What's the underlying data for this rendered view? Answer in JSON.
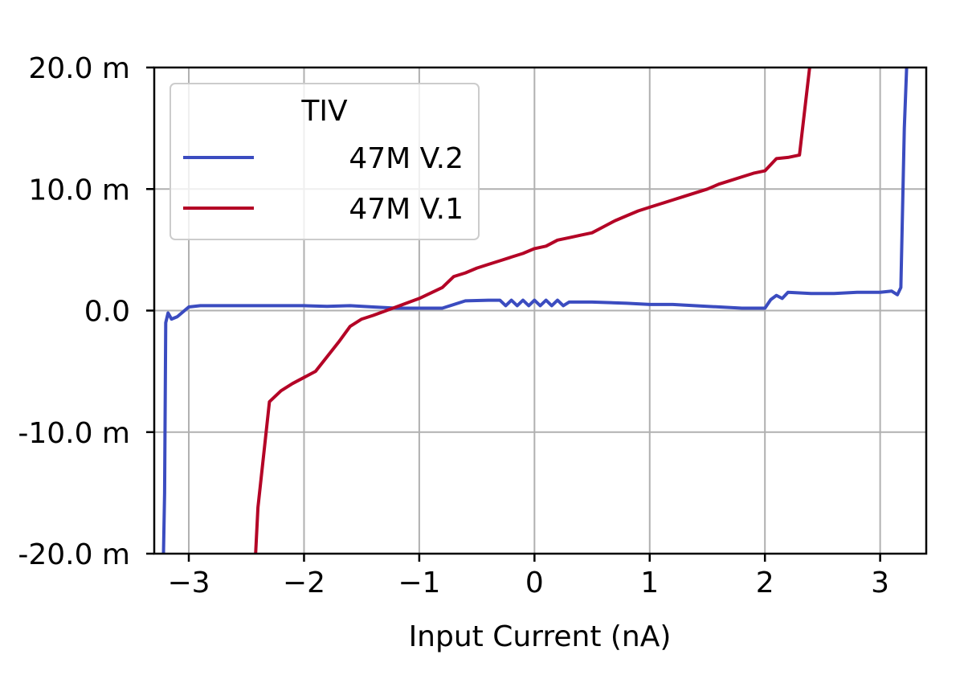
{
  "chart_data": {
    "type": "line",
    "title": "",
    "xlabel": "Input Current (nA)",
    "ylabel": "",
    "xlim": [
      -3.3,
      3.4
    ],
    "ylim": [
      -20.0,
      20.0
    ],
    "xticks": [
      -3,
      -2,
      -1,
      0,
      1,
      2,
      3
    ],
    "xtick_labels": [
      "−3",
      "−2",
      "−1",
      "0",
      "1",
      "2",
      "3"
    ],
    "yticks": [
      -20,
      -10,
      0,
      10,
      20
    ],
    "ytick_labels": [
      "-20.0 m",
      "-10.0 m",
      "0.0",
      "10.0 m",
      "20.0 m"
    ],
    "grid": true,
    "legend": {
      "title": "TIV",
      "placement": "top-left"
    },
    "series": [
      {
        "name": "47M V.2",
        "color": "#3b4cc0",
        "x": [
          -3.22,
          -3.21,
          -3.2,
          -3.18,
          -3.15,
          -3.1,
          -3.0,
          -2.9,
          -2.8,
          -2.5,
          -2.0,
          -1.8,
          -1.6,
          -1.4,
          -1.2,
          -1.0,
          -0.8,
          -0.6,
          -0.4,
          -0.3,
          -0.25,
          -0.2,
          -0.15,
          -0.1,
          -0.05,
          0.0,
          0.05,
          0.1,
          0.15,
          0.2,
          0.25,
          0.3,
          0.5,
          0.8,
          1.0,
          1.2,
          1.5,
          1.8,
          2.0,
          2.05,
          2.1,
          2.15,
          2.2,
          2.4,
          2.6,
          2.8,
          3.0,
          3.1,
          3.15,
          3.18,
          3.21,
          3.23,
          3.24
        ],
        "y": [
          -20.0,
          -15.0,
          -1.0,
          -0.2,
          -0.7,
          -0.5,
          0.3,
          0.4,
          0.4,
          0.4,
          0.4,
          0.35,
          0.4,
          0.3,
          0.2,
          0.2,
          0.2,
          0.8,
          0.85,
          0.85,
          0.4,
          0.85,
          0.4,
          0.85,
          0.4,
          0.85,
          0.4,
          0.85,
          0.4,
          0.85,
          0.4,
          0.7,
          0.7,
          0.6,
          0.5,
          0.5,
          0.35,
          0.2,
          0.2,
          0.9,
          1.25,
          1.0,
          1.5,
          1.4,
          1.4,
          1.5,
          1.5,
          1.6,
          1.3,
          1.9,
          15.0,
          20.0,
          22.0
        ]
      },
      {
        "name": "47M V.1",
        "color": "#b40426",
        "x": [
          -2.43,
          -2.42,
          -2.4,
          -2.3,
          -2.2,
          -2.1,
          -2.0,
          -1.9,
          -1.8,
          -1.7,
          -1.6,
          -1.5,
          -1.4,
          -1.2,
          -1.0,
          -0.8,
          -0.7,
          -0.6,
          -0.5,
          -0.4,
          -0.3,
          -0.2,
          -0.1,
          0.0,
          0.1,
          0.2,
          0.3,
          0.4,
          0.5,
          0.6,
          0.7,
          0.8,
          0.9,
          1.0,
          1.1,
          1.2,
          1.3,
          1.4,
          1.5,
          1.6,
          1.7,
          1.8,
          1.9,
          2.0,
          2.1,
          2.2,
          2.3,
          2.4,
          2.45
        ],
        "y": [
          -21.0,
          -20.0,
          -16.2,
          -7.5,
          -6.6,
          -6.0,
          -5.5,
          -5.0,
          -3.8,
          -2.6,
          -1.3,
          -0.7,
          -0.4,
          0.3,
          1.0,
          1.9,
          2.8,
          3.1,
          3.5,
          3.8,
          4.1,
          4.4,
          4.7,
          5.1,
          5.3,
          5.8,
          6.0,
          6.2,
          6.4,
          6.9,
          7.4,
          7.8,
          8.2,
          8.5,
          8.8,
          9.1,
          9.4,
          9.7,
          10.0,
          10.4,
          10.7,
          11.0,
          11.3,
          11.5,
          12.5,
          12.6,
          12.8,
          21.0,
          24.0
        ]
      }
    ]
  }
}
